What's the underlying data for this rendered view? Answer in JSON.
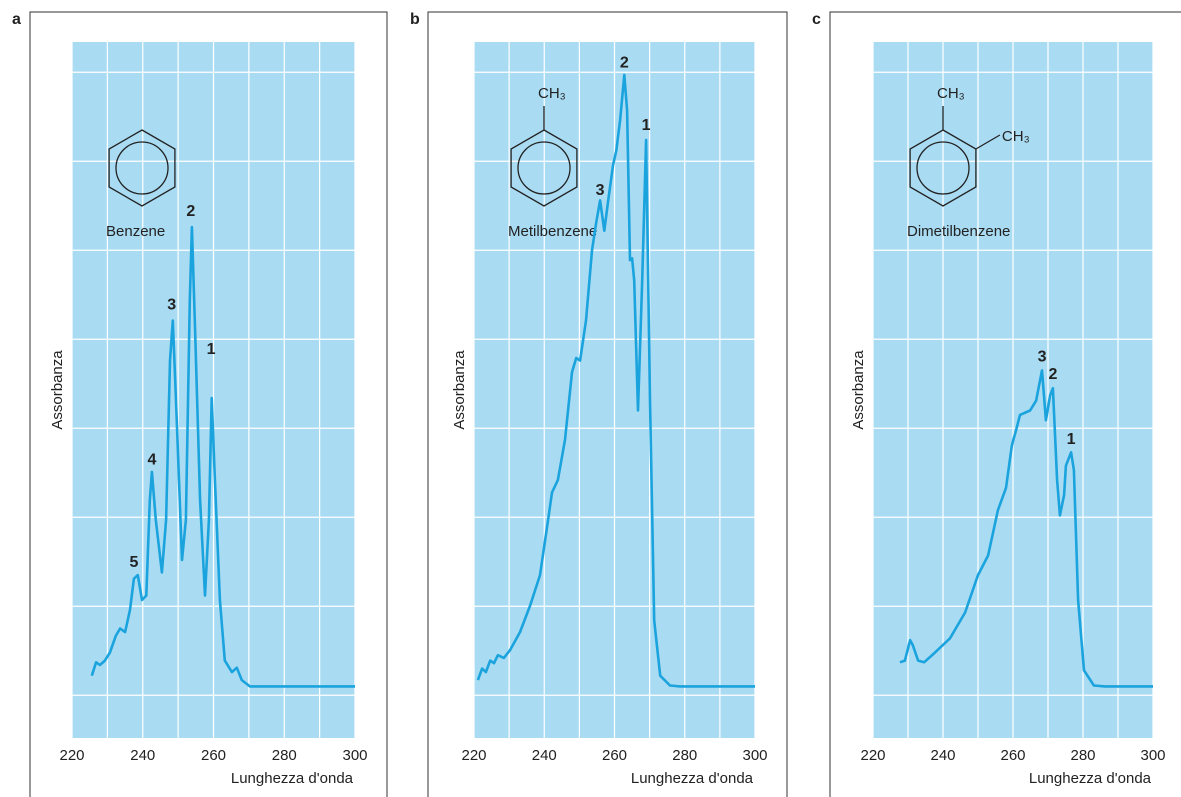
{
  "chart_data": [
    {
      "type": "line",
      "panel": "a",
      "title": "Benzene",
      "ylabel": "Assorbanza",
      "xlabel": "Lunghezza d'onda",
      "color": "#1ba3dd",
      "xlim": [
        220,
        300
      ],
      "xticks": [
        220,
        240,
        260,
        280,
        300
      ],
      "xminor": [
        230,
        250,
        270,
        290
      ],
      "ylim": [
        -0.48,
        7.34
      ],
      "ygrid": [
        0,
        1,
        2,
        3,
        4,
        5,
        6,
        7
      ],
      "x": [
        225.6,
        226.8,
        227.9,
        229.3,
        230.7,
        232.4,
        233.6,
        235,
        236.4,
        237.5,
        238.6,
        239.8,
        241,
        242,
        242.6,
        243.7,
        245.4,
        246.6,
        247.7,
        248.5,
        249.4,
        251.1,
        252.2,
        253.3,
        253.9,
        254.7,
        256.2,
        257.6,
        258.7,
        259.5,
        260.4,
        261.8,
        263.2,
        265.2,
        266.6,
        268,
        270.3,
        284.4,
        300
      ],
      "values": [
        0.22,
        0.37,
        0.34,
        0.39,
        0.48,
        0.67,
        0.75,
        0.71,
        0.96,
        1.31,
        1.35,
        1.07,
        1.12,
        2.19,
        2.51,
        1.97,
        1.38,
        1.97,
        3.76,
        4.21,
        3.31,
        1.52,
        1.97,
        4.44,
        5.26,
        4.21,
        2.19,
        1.12,
        1.97,
        3.34,
        2.42,
        1.07,
        0.39,
        0.26,
        0.31,
        0.17,
        0.1,
        0.1,
        0.1
      ],
      "annotations": [
        {
          "text": "5",
          "x": 237.5,
          "y": 1.49
        },
        {
          "text": "4",
          "x": 242.6,
          "y": 2.64
        },
        {
          "text": "3",
          "x": 248.2,
          "y": 4.38
        },
        {
          "text": "2",
          "x": 253.6,
          "y": 5.43
        },
        {
          "text": "1",
          "x": 259.3,
          "y": 3.88
        }
      ]
    },
    {
      "type": "line",
      "panel": "b",
      "title": "Metilbenzene",
      "ylabel": "Assorbanza",
      "xlabel": "Lunghezza d'onda",
      "color": "#1ba3dd",
      "substituents": [
        "CH₃"
      ],
      "xlim": [
        220,
        300
      ],
      "xticks": [
        220,
        240,
        260,
        280,
        300
      ],
      "xminor": [
        230,
        250,
        270,
        290
      ],
      "ylim": [
        -0.48,
        7.34
      ],
      "ygrid": [
        0,
        1,
        2,
        3,
        4,
        5,
        6,
        7
      ],
      "x": [
        221.1,
        222.3,
        223.4,
        224.6,
        225.7,
        226.8,
        228.5,
        230.3,
        233.1,
        236,
        238.8,
        241.1,
        242.2,
        243.9,
        245.9,
        247.9,
        249.1,
        250.2,
        251.9,
        253.6,
        254.8,
        255.9,
        257.1,
        258.2,
        259.6,
        260.5,
        261.6,
        262.8,
        263.6,
        264.4,
        265,
        265.6,
        266.7,
        267.9,
        269,
        270.1,
        271.3,
        273,
        275.8,
        278.7,
        300
      ],
      "values": [
        0.17,
        0.3,
        0.26,
        0.39,
        0.36,
        0.45,
        0.42,
        0.51,
        0.71,
        1.01,
        1.35,
        1.97,
        2.28,
        2.42,
        2.87,
        3.63,
        3.79,
        3.76,
        4.21,
        5.0,
        5.31,
        5.56,
        5.22,
        5.56,
        5.96,
        6.12,
        6.46,
        6.97,
        6.57,
        4.89,
        4.91,
        4.66,
        3.2,
        4.66,
        6.24,
        3.31,
        0.84,
        0.22,
        0.11,
        0.1,
        0.1
      ],
      "annotations": [
        {
          "text": "3",
          "x": 255.9,
          "y": 5.67
        },
        {
          "text": "2",
          "x": 262.8,
          "y": 7.1
        },
        {
          "text": "1",
          "x": 269,
          "y": 6.4
        }
      ]
    },
    {
      "type": "line",
      "panel": "c",
      "title": "Dimetilbenzene",
      "ylabel": "Assorbanza",
      "xlabel": "Lunghezza d'onda",
      "color": "#1ba3dd",
      "substituents": [
        "CH₃",
        "CH₃"
      ],
      "xlim": [
        220,
        300
      ],
      "xticks": [
        220,
        240,
        260,
        280,
        300
      ],
      "xminor": [
        230,
        250,
        270,
        290
      ],
      "ylim": [
        -0.48,
        7.34
      ],
      "ygrid": [
        0,
        1,
        2,
        3,
        4,
        5,
        6,
        7
      ],
      "x": [
        227.7,
        229.1,
        230.6,
        231.4,
        232.9,
        234.6,
        237.7,
        242,
        246.3,
        250,
        252.9,
        255.7,
        258,
        259.7,
        260.9,
        262,
        264.9,
        266.6,
        268.3,
        269.4,
        270.6,
        271.4,
        272.6,
        273.4,
        274.6,
        275.1,
        276.6,
        277.4,
        278.6,
        280.3,
        283.1,
        286.3,
        300
      ],
      "values": [
        0.37,
        0.39,
        0.62,
        0.56,
        0.39,
        0.37,
        0.48,
        0.64,
        0.93,
        1.35,
        1.57,
        2.08,
        2.33,
        2.81,
        2.98,
        3.15,
        3.2,
        3.31,
        3.65,
        3.09,
        3.37,
        3.45,
        2.42,
        2.02,
        2.25,
        2.58,
        2.73,
        2.53,
        1.07,
        0.28,
        0.11,
        0.1,
        0.1
      ],
      "annotations": [
        {
          "text": "3",
          "x": 268.3,
          "y": 3.8
        },
        {
          "text": "2",
          "x": 271.4,
          "y": 3.6
        },
        {
          "text": "1",
          "x": 276.6,
          "y": 2.87
        }
      ]
    }
  ]
}
